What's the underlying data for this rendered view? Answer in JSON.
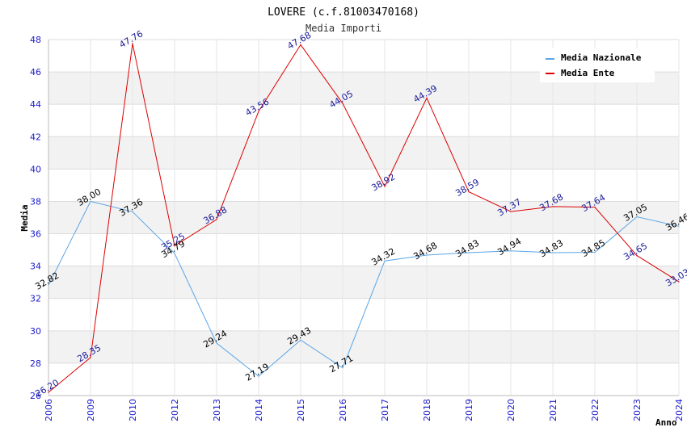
{
  "chart_data": {
    "type": "line",
    "title": "LOVERE (c.f.81003470168)",
    "subtitle": "Media Importi",
    "xlabel": "Anno",
    "ylabel": "Media",
    "ylim": [
      26,
      48
    ],
    "ytick_step": 2,
    "grid": true,
    "legend_position": "top-right",
    "categories": [
      "2006",
      "2009",
      "2010",
      "2012",
      "2013",
      "2014",
      "2015",
      "2016",
      "2017",
      "2018",
      "2019",
      "2020",
      "2021",
      "2022",
      "2023",
      "2024"
    ],
    "series": [
      {
        "name": "Media Nazionale",
        "color": "#5aa5e6",
        "values": [
          32.82,
          38.0,
          37.36,
          34.79,
          29.24,
          27.19,
          29.43,
          27.71,
          34.32,
          34.68,
          34.83,
          34.94,
          34.83,
          34.85,
          37.05,
          36.46
        ],
        "labels": [
          "32.82",
          "38.00",
          "37.36",
          "34.79",
          "29.24",
          "27.19",
          "29.43",
          "27.71",
          "34.32",
          "34.68",
          "34.83",
          "34.94",
          "34.83",
          "34.85",
          "37.05",
          "36.46"
        ]
      },
      {
        "name": "Media Ente",
        "color": "#dd0000",
        "values": [
          26.2,
          28.35,
          47.76,
          35.25,
          36.88,
          43.56,
          47.68,
          44.05,
          38.92,
          44.39,
          38.59,
          37.37,
          37.68,
          37.64,
          34.65,
          33.03
        ],
        "labels": [
          "26.20",
          "28.35",
          "47.76",
          "35.25",
          "36.88",
          "43.56",
          "47.68",
          "44.05",
          "38.92",
          "44.39",
          "38.59",
          "37.37",
          "37.68",
          "37.64",
          "34.65",
          "33.03"
        ]
      }
    ]
  }
}
